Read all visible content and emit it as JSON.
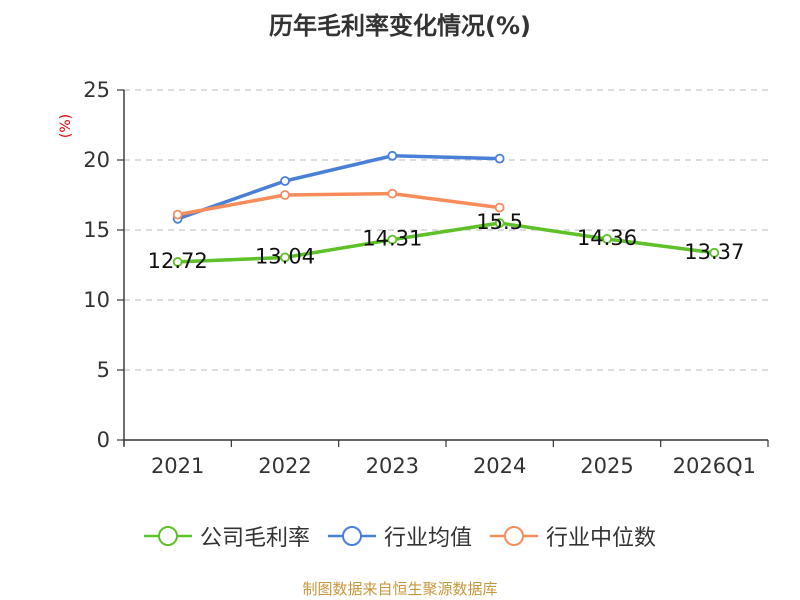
{
  "chart_data": {
    "type": "line",
    "title": "历年毛利率变化情况(%)",
    "ylabel": "(%)",
    "xlabel": "",
    "ylim": [
      0,
      25
    ],
    "yticks": [
      0,
      5,
      10,
      15,
      20,
      25
    ],
    "grid": true,
    "legend_position": "bottom",
    "categories": [
      "2021",
      "2022",
      "2023",
      "2024",
      "2025",
      "2026Q1"
    ],
    "series": [
      {
        "name": "公司毛利率",
        "color": "#5dc127",
        "values": [
          12.72,
          13.04,
          14.31,
          15.5,
          14.36,
          13.37
        ],
        "labels": [
          "12.72",
          "13.04",
          "14.31",
          "15.5",
          "14.36",
          "13.37"
        ]
      },
      {
        "name": "行业均值",
        "color": "#4a7fd8",
        "values": [
          15.8,
          18.5,
          20.3,
          20.1,
          null,
          null
        ]
      },
      {
        "name": "行业中位数",
        "color": "#f58c5a",
        "values": [
          16.1,
          17.5,
          17.6,
          16.6,
          null,
          null
        ]
      }
    ]
  },
  "source": "制图数据来自恒生聚源数据库"
}
